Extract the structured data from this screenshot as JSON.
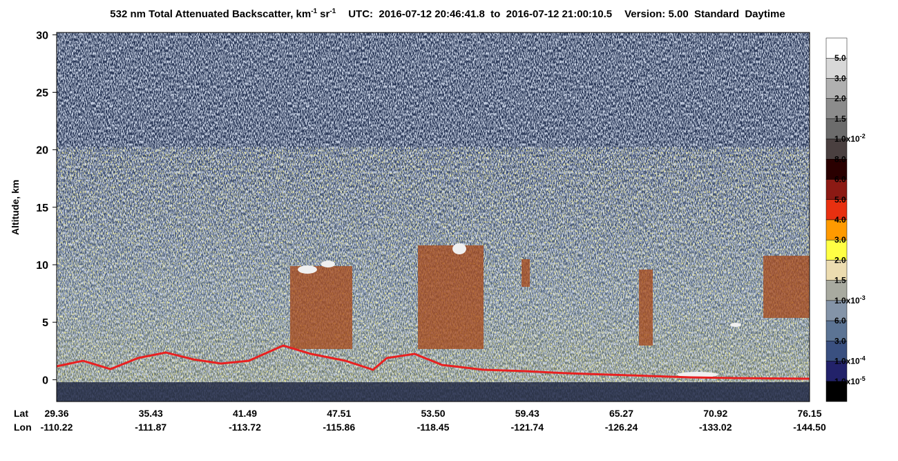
{
  "chart_data": {
    "type": "heatmap",
    "title": {
      "main": "532 nm Total Attenuated Backscatter, km",
      "main_exp": "-1",
      "unit2": "sr",
      "unit2_exp": "-1",
      "utc": "UTC:  2016-07-12 20:46:41.8  to  2016-07-12 21:00:10.5",
      "version": "Version: 5.00  Standard  Daytime"
    },
    "ylabel": "Altitude, km",
    "ylim": [
      -1.9,
      30.2
    ],
    "yticks": [
      0,
      5,
      10,
      15,
      20,
      25,
      30
    ],
    "x_rows": [
      {
        "name": "Lat",
        "labels": [
          "29.36",
          "35.43",
          "41.49",
          "47.51",
          "53.50",
          "59.43",
          "65.27",
          "70.92",
          "76.15"
        ]
      },
      {
        "name": "Lon",
        "labels": [
          "-110.22",
          "-111.87",
          "-113.72",
          "-115.86",
          "-118.45",
          "-121.74",
          "-126.24",
          "-133.02",
          "-144.50"
        ]
      }
    ],
    "colorbar": {
      "colors": [
        "#ffffff",
        "#d8d8d8",
        "#b0b0b0",
        "#8c8c8c",
        "#6c6c6c",
        "#4a4040",
        "#2a0000",
        "#8c1a14",
        "#e83010",
        "#ff9a00",
        "#ffff44",
        "#ecdcb0",
        "#a8aaa0",
        "#8494a8",
        "#5c7494",
        "#3a5080",
        "#22226a",
        "#000000"
      ],
      "labels": [
        {
          "text": "5.0"
        },
        {
          "text": "3.0"
        },
        {
          "text": "2.0"
        },
        {
          "text": "1.5"
        },
        {
          "text": "1.0x10",
          "exp": "-2"
        },
        {
          "text": "8.0"
        },
        {
          "text": "6.0"
        },
        {
          "text": "5.0"
        },
        {
          "text": "4.0"
        },
        {
          "text": "3.0"
        },
        {
          "text": "2.0"
        },
        {
          "text": "1.5"
        },
        {
          "text": "1.0x10",
          "exp": "-3"
        },
        {
          "text": "6.0"
        },
        {
          "text": "3.0"
        },
        {
          "text": "1.0x10",
          "exp": "-4"
        },
        {
          "text": "1.0x10",
          "exp": "-5"
        }
      ]
    }
  }
}
